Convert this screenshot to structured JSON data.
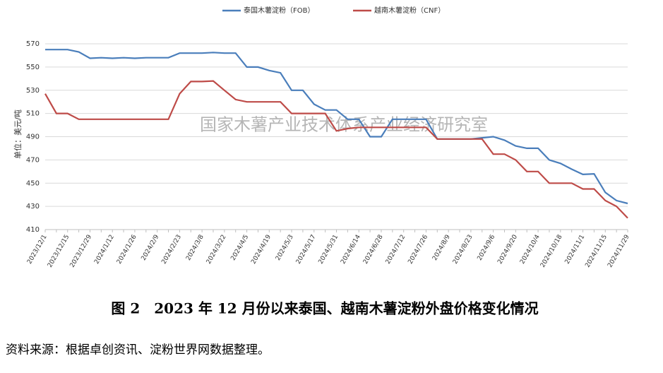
{
  "chart_data": {
    "type": "line",
    "y_label": "单位：美元/吨",
    "annotation": "国家木薯产业技术体系产业经济研究室",
    "categories": [
      "2023/12/1",
      null,
      "2023/12/15",
      null,
      "2023/12/29",
      null,
      "2024/1/12",
      null,
      "2024/1/26",
      null,
      "2024/2/9",
      null,
      "2024/2/23",
      null,
      "2024/3/8",
      null,
      "2024/3/22",
      null,
      "2024/4/5",
      null,
      "2024/4/19",
      null,
      "2024/5/3",
      null,
      "2024/5/17",
      null,
      "2024/5/31",
      null,
      "2024/6/14",
      null,
      "2024/6/28",
      null,
      "2024/7/12",
      null,
      "2024/7/26",
      null,
      "2024/8/9",
      null,
      "2024/8/23",
      null,
      "2024/9/6",
      null,
      "2024/9/20",
      null,
      "2024/10/4",
      null,
      "2024/10/18",
      null,
      "2024/11/1",
      null,
      "2024/11/15",
      null,
      "2024/11/29"
    ],
    "series": [
      {
        "name": "泰国木薯淀粉（FOB）",
        "color": "#4a7ebb",
        "values": [
          565,
          565,
          565,
          563,
          557.5,
          558,
          557.5,
          558,
          557.5,
          558,
          558,
          558,
          562,
          562,
          562,
          562.5,
          562,
          562,
          550,
          550,
          547,
          545,
          530,
          530,
          518,
          513,
          513,
          505,
          505,
          490,
          490,
          505,
          505,
          505,
          505,
          488,
          488,
          488,
          488,
          489,
          490,
          487,
          482,
          480,
          480,
          470,
          467,
          462,
          457.5,
          458,
          442,
          435,
          432.5
        ]
      },
      {
        "name": "越南木薯淀粉（CNF）",
        "color": "#be4b48",
        "values": [
          527,
          510,
          510,
          505,
          505,
          505,
          505,
          505,
          505,
          505,
          505,
          505,
          527,
          537.5,
          537.5,
          538,
          530,
          522,
          520,
          520,
          520,
          520,
          510,
          510,
          510,
          510,
          495,
          497,
          498,
          498,
          498,
          498,
          498,
          498,
          498,
          488,
          488,
          488,
          488,
          488,
          475,
          475,
          470,
          460,
          460,
          450,
          450,
          450,
          445,
          445,
          435,
          430,
          420
        ]
      }
    ],
    "ylim": [
      410,
      570
    ],
    "yticks": [
      410,
      430,
      450,
      470,
      490,
      510,
      530,
      550,
      570
    ],
    "grid": true
  },
  "caption": "图 2　2023 年 12 月份以来泰国、越南木薯淀粉外盘价格变化情况",
  "source": "资料来源：根据卓创资讯、淀粉世界网数据整理。"
}
